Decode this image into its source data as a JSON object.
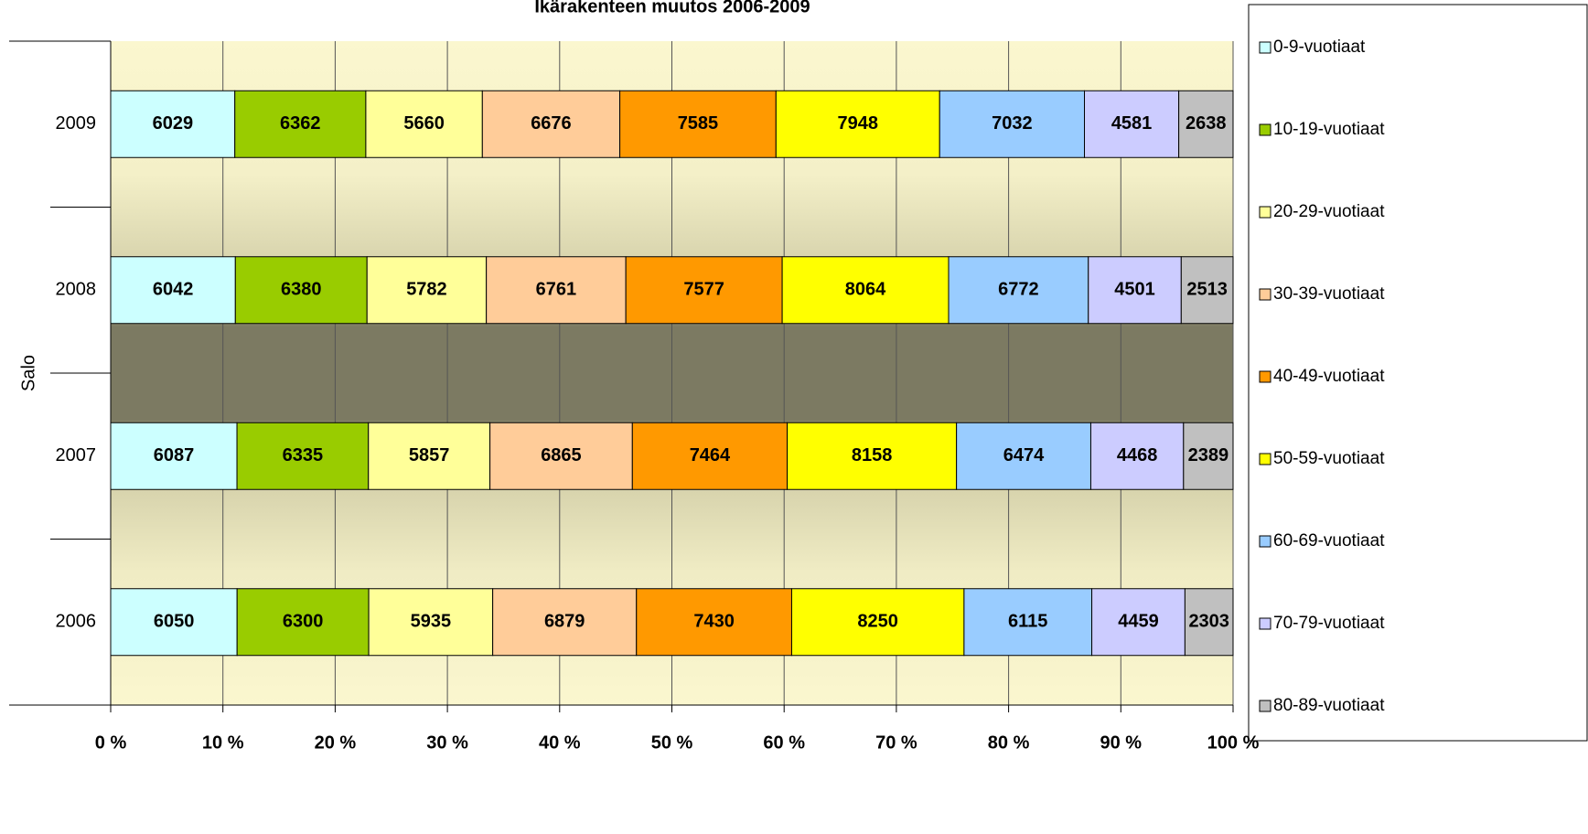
{
  "chart_data": {
    "type": "stacked-bar-100-horizontal",
    "title": "Ikärakenteen muutos 2006-2009",
    "y_label": "Salo",
    "categories": [
      "2009",
      "2008",
      "2007",
      "2006"
    ],
    "series": [
      {
        "name": "0-9-vuotiaat",
        "color": "#ccffff",
        "values": [
          6029,
          6042,
          6087,
          6050
        ]
      },
      {
        "name": "10-19-vuotiaat",
        "color": "#99cc00",
        "values": [
          6362,
          6380,
          6335,
          6300
        ]
      },
      {
        "name": "20-29-vuotiaat",
        "color": "#ffff99",
        "values": [
          5660,
          5782,
          5857,
          5935
        ]
      },
      {
        "name": "30-39-vuotiaat",
        "color": "#ffcc99",
        "values": [
          6676,
          6761,
          6865,
          6879
        ]
      },
      {
        "name": "40-49-vuotiaat",
        "color": "#ff9900",
        "values": [
          7585,
          7577,
          7464,
          7430
        ]
      },
      {
        "name": "50-59-vuotiaat",
        "color": "#ffff00",
        "values": [
          7948,
          8064,
          8158,
          8250
        ]
      },
      {
        "name": "60-69-vuotiaat",
        "color": "#99ccff",
        "values": [
          7032,
          6772,
          6474,
          6115
        ]
      },
      {
        "name": "70-79-vuotiaat",
        "color": "#ccccff",
        "values": [
          4581,
          4501,
          4468,
          4459
        ]
      },
      {
        "name": "80-89-vuotiaat",
        "color": "#c0c0c0",
        "values": [
          2638,
          2513,
          2389,
          2303
        ]
      }
    ],
    "xlim": [
      0,
      100
    ],
    "xticks": [
      {
        "value": 0,
        "label": "0 %"
      },
      {
        "value": 10,
        "label": "10 %"
      },
      {
        "value": 20,
        "label": "20 %"
      },
      {
        "value": 30,
        "label": "30 %"
      },
      {
        "value": 40,
        "label": "40 %"
      },
      {
        "value": 50,
        "label": "50 %"
      },
      {
        "value": 60,
        "label": "60 %"
      },
      {
        "value": 70,
        "label": "70 %"
      },
      {
        "value": 80,
        "label": "80 %"
      },
      {
        "value": 90,
        "label": "90 %"
      },
      {
        "value": 100,
        "label": "100 %"
      }
    ],
    "grid": true,
    "legend": "right"
  }
}
